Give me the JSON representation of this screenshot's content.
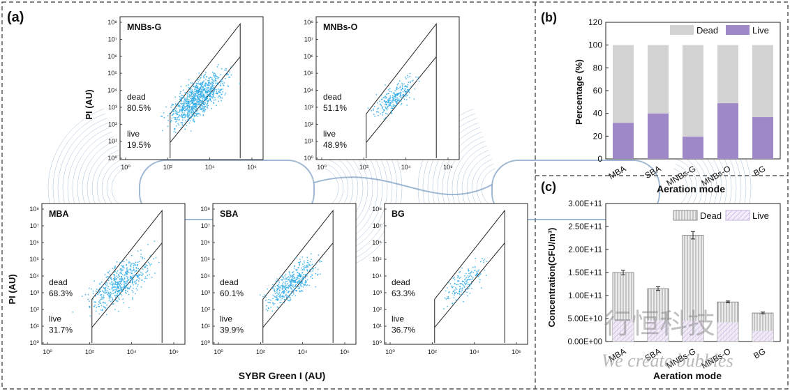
{
  "panel_labels": {
    "a": "(a)",
    "b": "(b)",
    "c": "(c)"
  },
  "colors": {
    "dead": "#d3d3d3",
    "live": "#9f88c7",
    "dots": "#2aa9e6",
    "lines": "#5f88b5"
  },
  "chart_data": [
    {
      "type": "scatter",
      "panel": "(a)",
      "xlabel": "SYBR Green I (AU)",
      "ylabel": "PI (AU)",
      "xticks": [
        "10⁰",
        "10²",
        "10⁴",
        "10⁶"
      ],
      "yticks": [
        "10⁰",
        "10¹",
        "10²",
        "10³",
        "10⁴",
        "10⁵",
        "10⁶",
        "10⁷",
        "10⁸"
      ],
      "plots": [
        {
          "title": "MNBs-G",
          "dead_label": "dead",
          "dead_pct": "80.5%",
          "live_label": "live",
          "live_pct": "19.5%"
        },
        {
          "title": "MNBs-O",
          "dead_label": "dead",
          "dead_pct": "51.1%",
          "live_label": "live",
          "live_pct": "48.9%"
        },
        {
          "title": "MBA",
          "dead_label": "dead",
          "dead_pct": "68.3%",
          "live_label": "live",
          "live_pct": "31.7%"
        },
        {
          "title": "SBA",
          "dead_label": "dead",
          "dead_pct": "60.1%",
          "live_label": "live",
          "live_pct": "39.9%"
        },
        {
          "title": "BG",
          "dead_label": "dead",
          "dead_pct": "63.3%",
          "live_label": "live",
          "live_pct": "36.7%"
        }
      ]
    },
    {
      "type": "bar",
      "panel": "(b)",
      "categories": [
        "MBA",
        "SBA",
        "MNBs-G",
        "MNBs-O",
        "BG"
      ],
      "series": [
        {
          "name": "Dead",
          "values": [
            68.3,
            60.1,
            80.5,
            51.1,
            63.3
          ]
        },
        {
          "name": "Live",
          "values": [
            31.7,
            39.9,
            19.5,
            48.9,
            36.7
          ]
        }
      ],
      "xlabel": "Aeration mode",
      "ylabel": "Percentage (%)",
      "ylim": [
        0,
        120
      ],
      "yticks": [
        "0",
        "20",
        "40",
        "60",
        "80",
        "100",
        "120"
      ]
    },
    {
      "type": "bar",
      "panel": "(c)",
      "categories": [
        "MBA",
        "SBA",
        "MNBs-G",
        "MNBs-O",
        "BG"
      ],
      "series": [
        {
          "name": "Dead",
          "values": [
            150000000000.0,
            115000000000.0,
            231000000000.0,
            86000000000.0,
            62000000000.0
          ]
        },
        {
          "name": "Live",
          "values": [
            48000000000.0,
            46000000000.0,
            45000000000.0,
            42000000000.0,
            23000000000.0
          ]
        }
      ],
      "xlabel": "Aeration mode",
      "ylabel": "Concentration(CFU/m³)",
      "ylim": [
        0,
        300000000000.0
      ],
      "yticks": [
        "0.00E+00",
        "5.00E+10",
        "1.00E+11",
        "1.50E+11",
        "2.00E+11",
        "2.50E+11",
        "3.00E+11"
      ]
    }
  ],
  "watermark": {
    "cn": "行恒科技",
    "en": "We create bubbles"
  }
}
